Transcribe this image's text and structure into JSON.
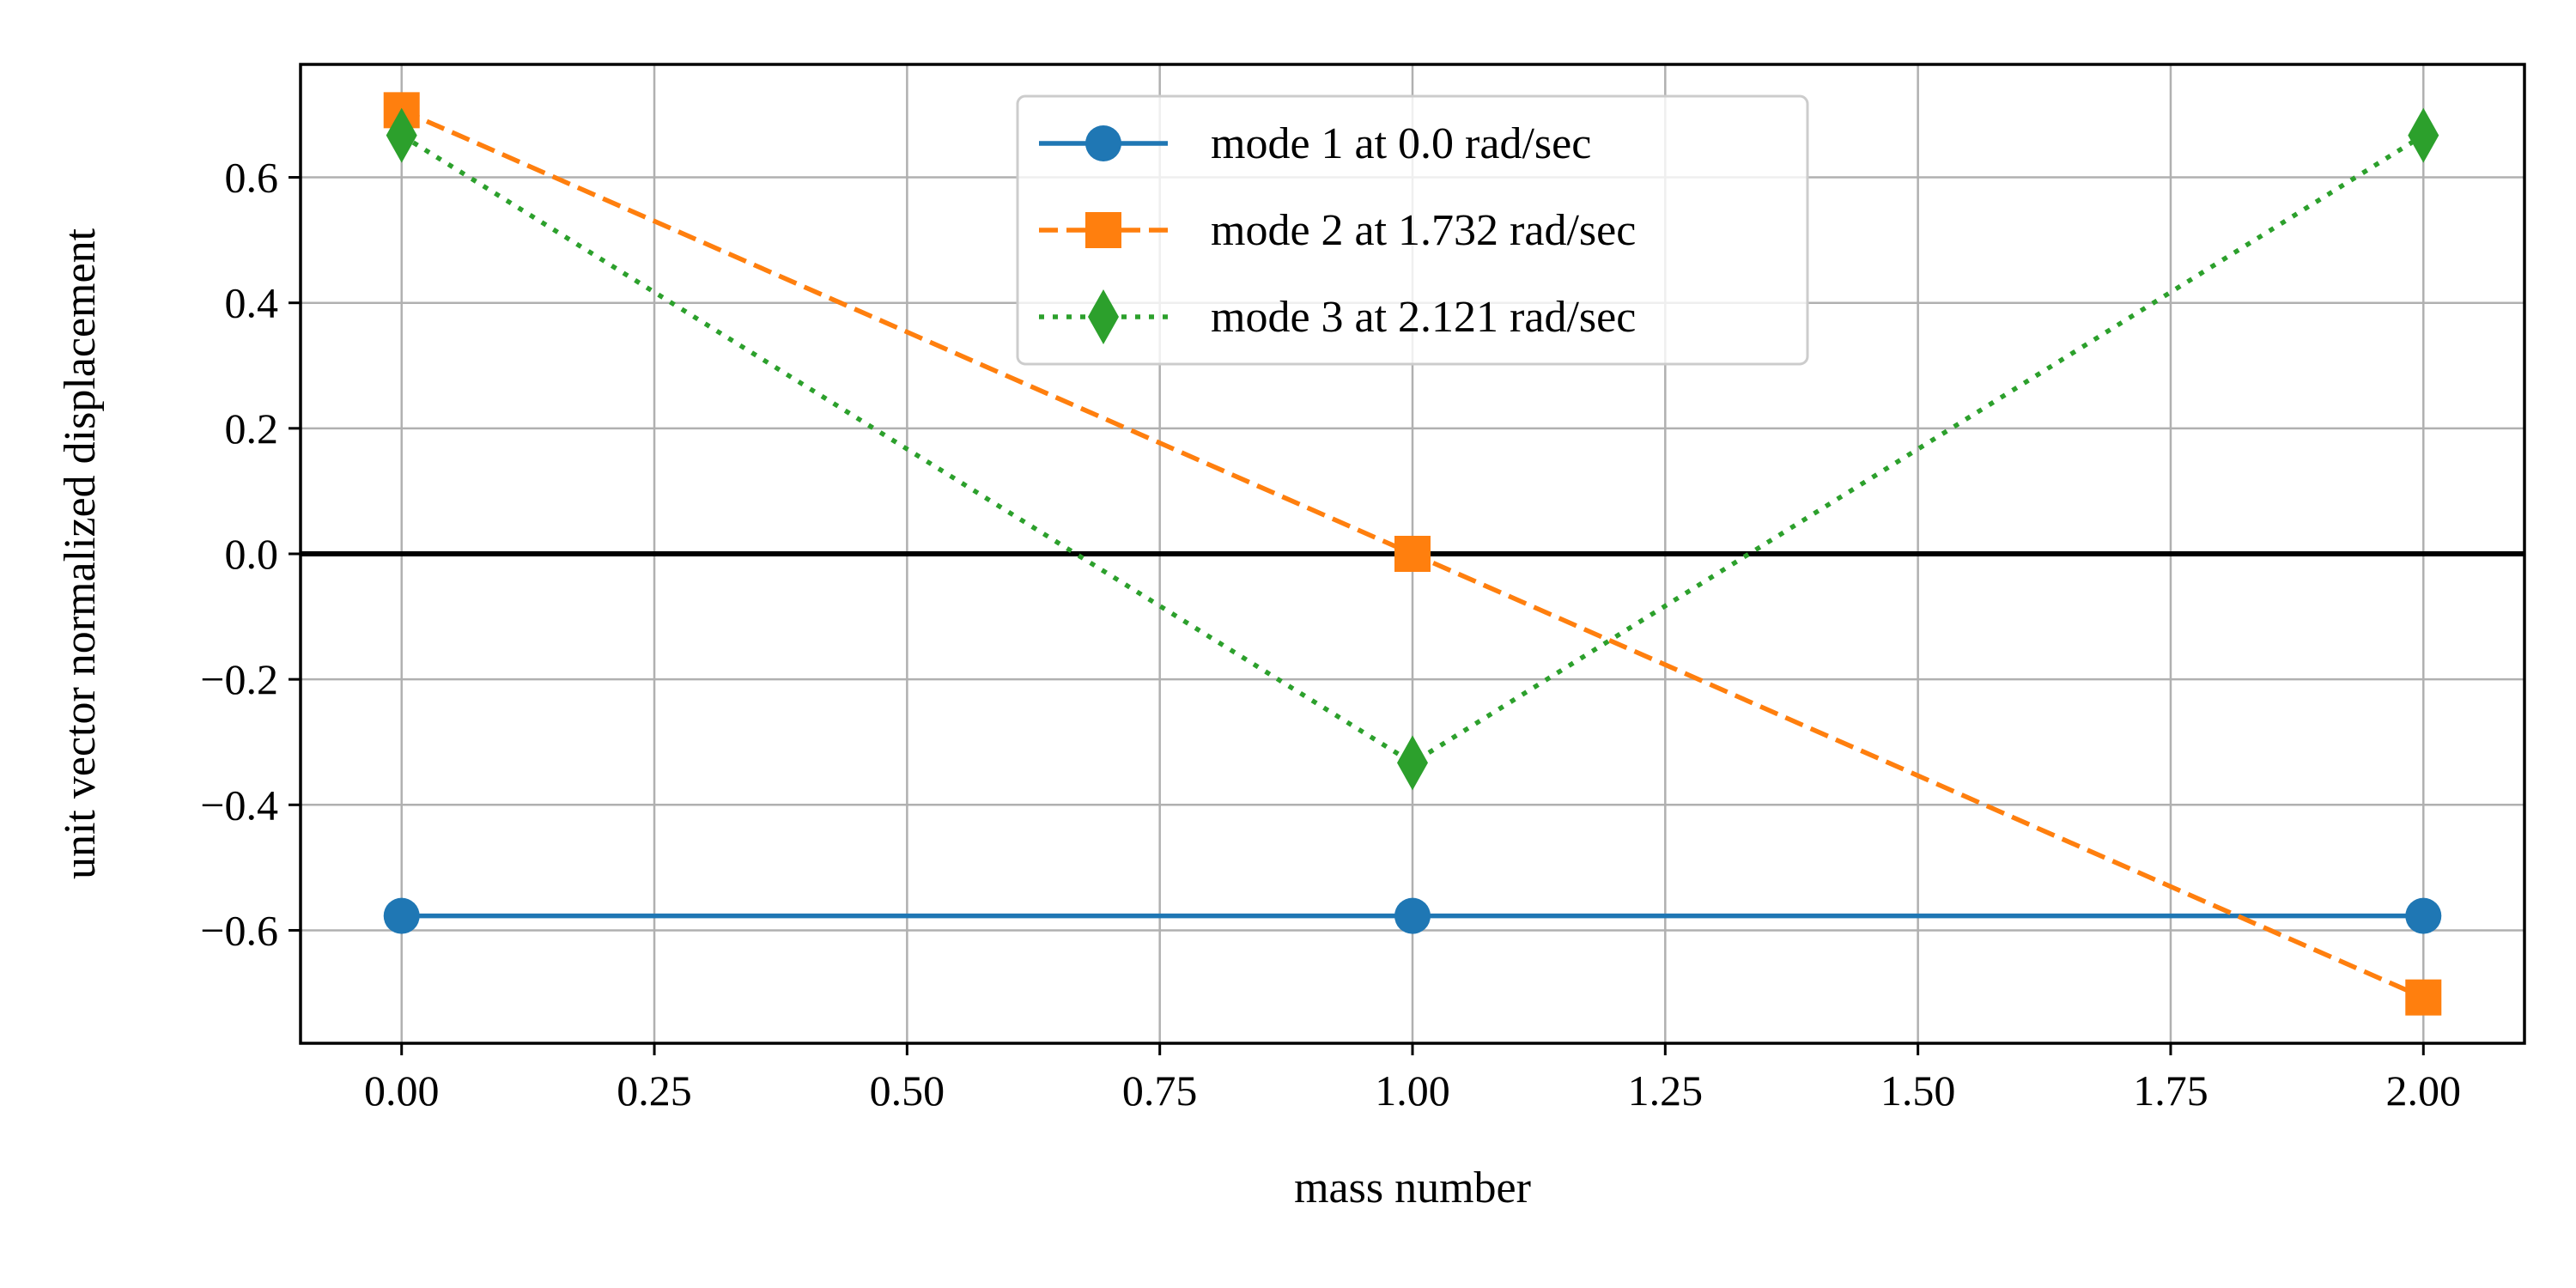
{
  "chart_data": {
    "type": "line",
    "xlabel": "mass number",
    "ylabel": "unit vector normalized displacement",
    "xlim": [
      -0.1,
      2.1
    ],
    "ylim": [
      -0.78,
      0.78
    ],
    "x_ticks": [
      0.0,
      0.25,
      0.5,
      0.75,
      1.0,
      1.25,
      1.5,
      1.75,
      2.0
    ],
    "x_tick_labels": [
      "0.00",
      "0.25",
      "0.50",
      "0.75",
      "1.00",
      "1.25",
      "1.50",
      "1.75",
      "2.00"
    ],
    "y_ticks": [
      0.6,
      0.4,
      0.2,
      0.0,
      -0.2,
      -0.4,
      -0.6
    ],
    "y_tick_labels": [
      "0.6",
      "0.4",
      "0.2",
      "0.0",
      "−0.2",
      "−0.4",
      "−0.6"
    ],
    "grid": true,
    "zero_line": true,
    "legend_position": "top-center",
    "series": [
      {
        "name": "mode 1 at 0.0 rad/sec",
        "x": [
          0,
          1,
          2
        ],
        "values": [
          -0.577,
          -0.577,
          -0.577
        ],
        "color": "#1f77b4",
        "linestyle": "solid",
        "marker": "circle"
      },
      {
        "name": "mode 2 at 1.732 rad/sec",
        "x": [
          0,
          1,
          2
        ],
        "values": [
          0.707,
          0.0,
          -0.707
        ],
        "color": "#ff7f0e",
        "linestyle": "dashed",
        "marker": "square"
      },
      {
        "name": "mode 3 at 2.121 rad/sec",
        "x": [
          0,
          1,
          2
        ],
        "values": [
          0.667,
          -0.333,
          0.667
        ],
        "color": "#2ca02c",
        "linestyle": "dotted",
        "marker": "diamond"
      }
    ]
  }
}
